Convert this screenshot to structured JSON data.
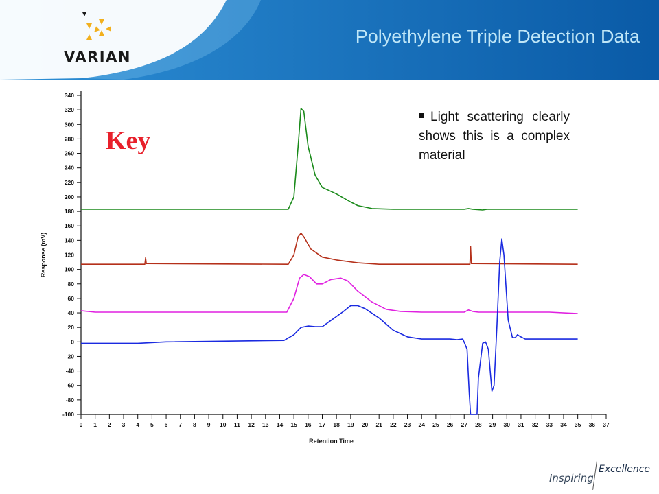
{
  "header": {
    "title": "Polyethylene Triple Detection Data",
    "logo_text": "VARIAN",
    "colors": {
      "banner_dark": "#0a5aa6",
      "banner_light": "#2d8fd6",
      "title": "#bfe6f7"
    }
  },
  "key_label": "Key",
  "note": "Light scattering clearly shows this is a complex material",
  "footer": {
    "inspiring": "Inspiring",
    "excellence": "Excellence"
  },
  "chart_data": {
    "type": "line",
    "title": "",
    "xlabel": "Retention Time",
    "ylabel": "Response (mV)",
    "xlim": [
      0,
      37
    ],
    "ylim": [
      -100,
      340
    ],
    "x_ticks": [
      0,
      1,
      2,
      3,
      4,
      5,
      6,
      7,
      8,
      9,
      10,
      11,
      12,
      13,
      14,
      15,
      16,
      17,
      18,
      19,
      20,
      21,
      22,
      23,
      24,
      25,
      26,
      27,
      28,
      29,
      30,
      31,
      32,
      33,
      34,
      35,
      36,
      37
    ],
    "y_ticks": [
      -100,
      -80,
      -60,
      -40,
      -20,
      0,
      20,
      40,
      60,
      80,
      100,
      120,
      140,
      160,
      180,
      200,
      220,
      240,
      260,
      280,
      300,
      320,
      340
    ],
    "grid": false,
    "series": [
      {
        "color": "#1a8a1a",
        "points": [
          [
            0,
            183
          ],
          [
            14.6,
            183
          ],
          [
            15.0,
            200
          ],
          [
            15.3,
            270
          ],
          [
            15.5,
            322
          ],
          [
            15.7,
            318
          ],
          [
            16.0,
            270
          ],
          [
            16.5,
            230
          ],
          [
            17.0,
            213
          ],
          [
            18.0,
            204
          ],
          [
            19.0,
            193
          ],
          [
            19.5,
            188
          ],
          [
            20.5,
            184
          ],
          [
            22.0,
            183
          ],
          [
            27.0,
            183
          ],
          [
            27.3,
            184
          ],
          [
            27.6,
            183
          ],
          [
            28.3,
            182
          ],
          [
            28.6,
            183
          ],
          [
            35,
            183
          ]
        ]
      },
      {
        "color": "#b5301a",
        "points": [
          [
            0,
            107
          ],
          [
            4.5,
            107
          ],
          [
            4.55,
            116
          ],
          [
            4.6,
            108
          ],
          [
            14.6,
            107
          ],
          [
            15.0,
            120
          ],
          [
            15.3,
            145
          ],
          [
            15.5,
            150
          ],
          [
            15.7,
            145
          ],
          [
            16.2,
            128
          ],
          [
            17.0,
            117
          ],
          [
            18.0,
            113
          ],
          [
            19.5,
            109
          ],
          [
            21.0,
            107
          ],
          [
            27.4,
            107
          ],
          [
            27.45,
            132
          ],
          [
            27.5,
            108
          ],
          [
            35,
            107
          ]
        ]
      },
      {
        "color": "#e020e0",
        "points": [
          [
            0,
            43
          ],
          [
            1,
            41
          ],
          [
            14.5,
            41
          ],
          [
            15.0,
            60
          ],
          [
            15.4,
            88
          ],
          [
            15.7,
            93
          ],
          [
            16.1,
            90
          ],
          [
            16.6,
            80
          ],
          [
            17.0,
            80
          ],
          [
            17.6,
            86
          ],
          [
            18.3,
            88
          ],
          [
            18.8,
            84
          ],
          [
            19.5,
            70
          ],
          [
            20.5,
            55
          ],
          [
            21.5,
            45
          ],
          [
            22.5,
            42
          ],
          [
            24,
            41
          ],
          [
            27.0,
            41
          ],
          [
            27.3,
            44
          ],
          [
            27.6,
            42
          ],
          [
            28.0,
            41
          ],
          [
            33,
            41
          ],
          [
            35,
            39
          ]
        ]
      },
      {
        "color": "#1a2ae0",
        "points": [
          [
            0,
            -2
          ],
          [
            4,
            -2
          ],
          [
            6,
            0
          ],
          [
            14.3,
            2
          ],
          [
            15.0,
            10
          ],
          [
            15.5,
            20
          ],
          [
            16.0,
            22
          ],
          [
            16.5,
            21
          ],
          [
            17.0,
            21
          ],
          [
            17.5,
            28
          ],
          [
            18.5,
            42
          ],
          [
            19.0,
            50
          ],
          [
            19.5,
            50
          ],
          [
            20.0,
            46
          ],
          [
            21.0,
            33
          ],
          [
            22.0,
            16
          ],
          [
            23.0,
            7
          ],
          [
            24.0,
            4
          ],
          [
            26.0,
            4
          ],
          [
            26.5,
            3
          ],
          [
            26.9,
            4
          ],
          [
            27.2,
            -10
          ],
          [
            27.35,
            -70
          ],
          [
            27.45,
            -100
          ],
          [
            27.9,
            -100
          ],
          [
            28.0,
            -50
          ],
          [
            28.3,
            -2
          ],
          [
            28.5,
            0
          ],
          [
            28.7,
            -10
          ],
          [
            28.95,
            -68
          ],
          [
            29.1,
            -60
          ],
          [
            29.3,
            20
          ],
          [
            29.5,
            110
          ],
          [
            29.65,
            142
          ],
          [
            29.8,
            120
          ],
          [
            30.1,
            30
          ],
          [
            30.4,
            6
          ],
          [
            30.6,
            6
          ],
          [
            30.75,
            10
          ],
          [
            30.9,
            8
          ],
          [
            31.3,
            4
          ],
          [
            35,
            4
          ]
        ]
      }
    ]
  }
}
